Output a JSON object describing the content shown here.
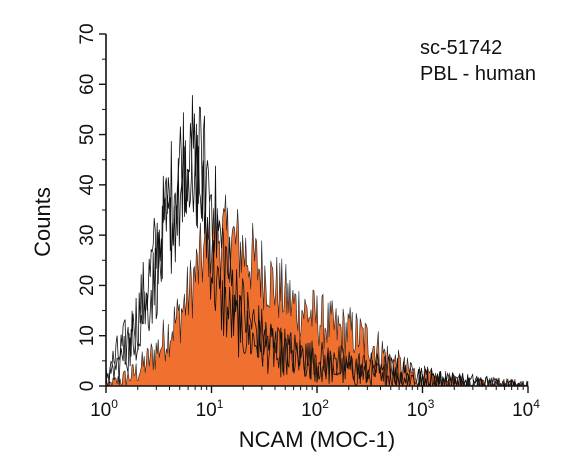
{
  "chart_data": {
    "type": "area",
    "annotation_lines": [
      "sc-51742",
      "PBL - human"
    ],
    "xlabel": "NCAM (MOC-1)",
    "ylabel": "Counts",
    "xscale": "log",
    "xlim": [
      1,
      10000
    ],
    "ylim": [
      0,
      70
    ],
    "x_ticks": [
      {
        "base": "10",
        "exp": "0"
      },
      {
        "base": "10",
        "exp": "1"
      },
      {
        "base": "10",
        "exp": "2"
      },
      {
        "base": "10",
        "exp": "3"
      },
      {
        "base": "10",
        "exp": "4"
      }
    ],
    "y_ticks": [
      "0",
      "10",
      "20",
      "30",
      "40",
      "50",
      "60",
      "70"
    ],
    "colors": {
      "filled": "#f07030",
      "outline": "#111111"
    },
    "series": [
      {
        "style": "filled",
        "x": [
          1,
          1.3,
          1.7,
          2,
          2.5,
          3,
          3.5,
          4,
          5,
          6,
          7,
          8,
          9,
          10,
          12,
          15,
          18,
          22,
          27,
          33,
          40,
          50,
          60,
          75,
          90,
          110,
          130,
          160,
          200,
          250,
          300,
          400,
          500,
          650,
          800,
          1000,
          1300,
          1700,
          2200,
          3000,
          4000,
          6000,
          8000,
          10000
        ],
        "y": [
          0,
          1,
          2,
          3,
          5,
          7,
          9,
          11,
          14,
          18,
          22,
          25,
          28,
          30,
          30,
          29,
          28,
          26,
          24,
          22,
          20,
          18,
          16,
          15,
          14,
          13,
          12,
          11,
          11,
          10,
          9,
          7,
          5,
          3.5,
          2.5,
          2,
          1.5,
          1.2,
          1,
          0.8,
          0.6,
          0.5,
          0.4,
          0
        ]
      },
      {
        "style": "outline",
        "x": [
          1,
          1.2,
          1.5,
          1.8,
          2,
          2.3,
          2.7,
          3,
          3.5,
          4,
          4.5,
          5,
          5.5,
          6,
          6.5,
          7,
          7.5,
          8,
          9,
          10,
          11,
          12,
          14,
          16,
          18,
          20,
          25,
          30,
          40,
          50,
          60,
          80,
          100,
          150,
          200,
          300,
          500,
          1000,
          2000,
          5000,
          10000
        ],
        "y": [
          2,
          5,
          8,
          11,
          14,
          18,
          23,
          27,
          32,
          37,
          41,
          44,
          46,
          47,
          46,
          44,
          41,
          38,
          32,
          25,
          20,
          17,
          15,
          13,
          12,
          11,
          9,
          8,
          7,
          6,
          5,
          4.5,
          4,
          3.5,
          3,
          2.5,
          2,
          1.5,
          1,
          0.5,
          0
        ]
      },
      {
        "style": "outline",
        "x": [
          1,
          1.3,
          1.7,
          2,
          2.5,
          3,
          3.5,
          4,
          5,
          6,
          7,
          8,
          9,
          10,
          11,
          12,
          14,
          16,
          18,
          20,
          25,
          30,
          40,
          50,
          70,
          100,
          150,
          200,
          300,
          500,
          800,
          1000,
          2000,
          5000,
          10000
        ],
        "y": [
          1,
          4,
          8,
          12,
          17,
          22,
          27,
          31,
          36,
          40,
          43,
          44,
          42,
          38,
          33,
          29,
          24,
          20,
          17,
          15,
          12,
          10,
          8,
          7,
          6,
          5,
          4.5,
          4,
          3.5,
          3,
          2,
          1.5,
          1,
          0.5,
          0
        ]
      }
    ]
  }
}
